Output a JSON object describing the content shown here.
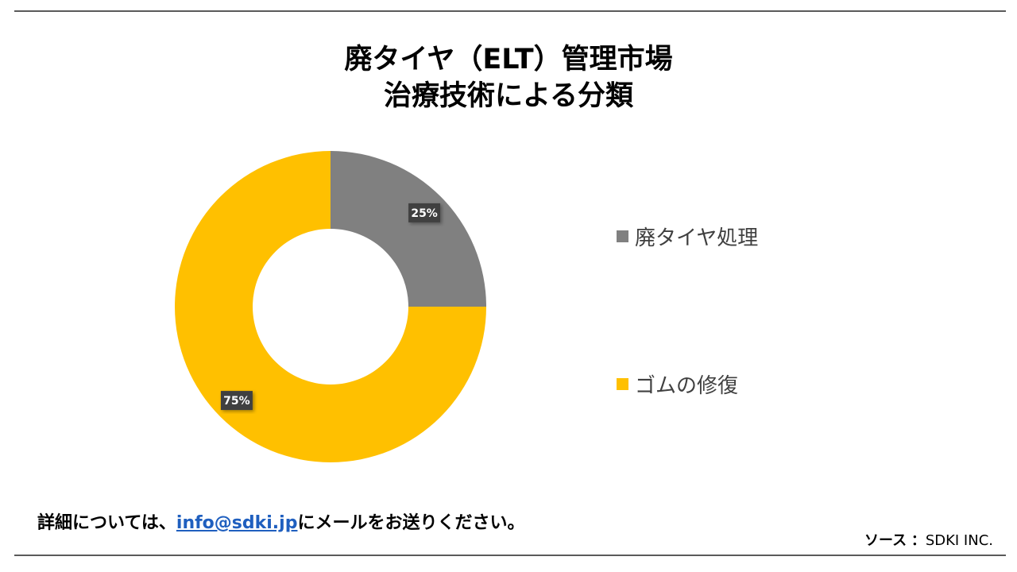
{
  "title": {
    "line1": "廃タイヤ（ELT）管理市場",
    "line2": "治療技術による分類"
  },
  "chart_data": {
    "type": "pie",
    "donut": true,
    "categories": [
      "廃タイヤ処理",
      "ゴムの修復"
    ],
    "values": [
      25,
      75
    ],
    "labels": [
      "25%",
      "75%"
    ],
    "colors": [
      "#808080",
      "#ffc000"
    ],
    "legend_position": "right"
  },
  "legend": {
    "items": [
      {
        "label": "廃タイヤ処理",
        "color": "#808080"
      },
      {
        "label": "ゴムの修復",
        "color": "#ffc000"
      }
    ]
  },
  "footer": {
    "prefix": "詳細については、",
    "email": "info@sdki.jp",
    "suffix": "にメールをお送りください。"
  },
  "source": {
    "label": "ソース",
    "separator": "：",
    "value": "SDKI INC."
  },
  "colors": {
    "rule": "#5a5a5a",
    "link": "#1f5fbf",
    "data_label_bg": "#404040"
  }
}
